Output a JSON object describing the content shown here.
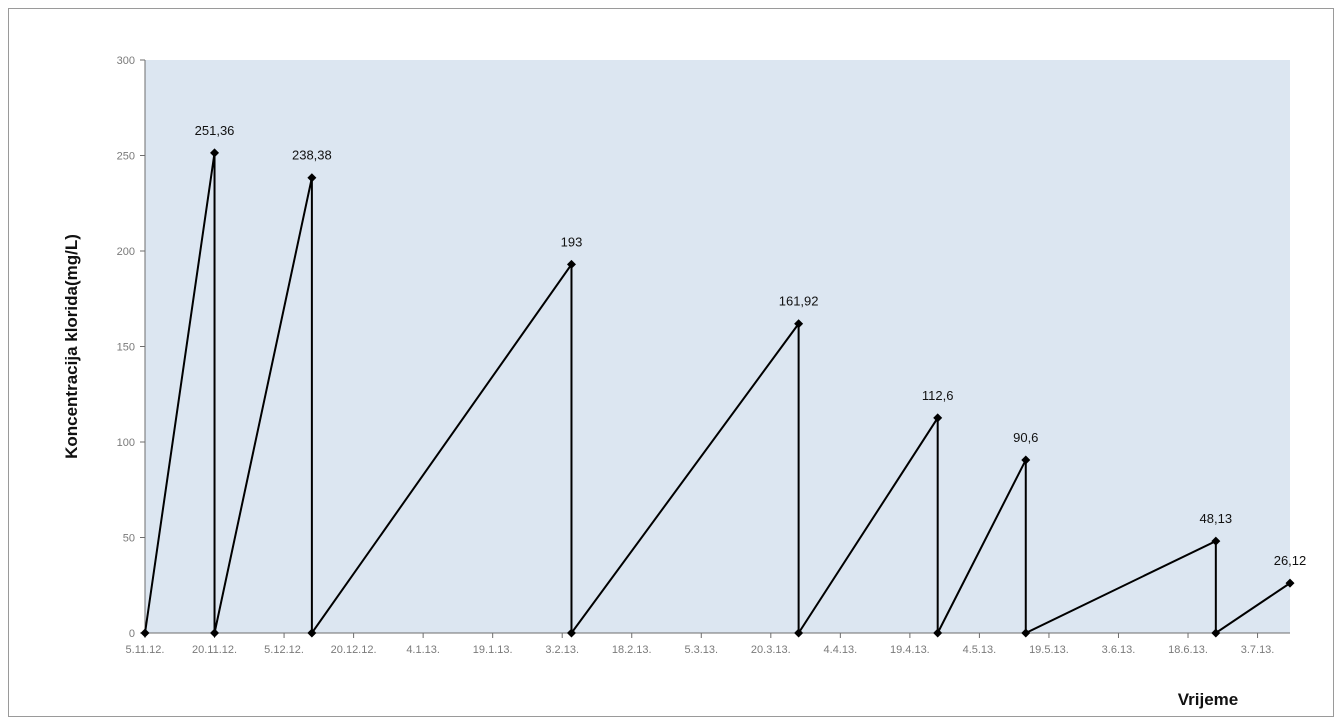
{
  "chart_data": {
    "type": "line",
    "title": "",
    "xlabel": "Vrijeme",
    "ylabel": "Koncentracija klorida(mg/L)",
    "ylim": [
      0,
      300
    ],
    "yticks": [
      "0",
      "50",
      "100",
      "150",
      "200",
      "250",
      "300"
    ],
    "xlim": [
      "2012-11-05",
      "2013-07-10"
    ],
    "xticks": [
      {
        "date": "2012-11-05",
        "label": "5.11.12."
      },
      {
        "date": "2012-11-20",
        "label": "20.11.12."
      },
      {
        "date": "2012-12-05",
        "label": "5.12.12."
      },
      {
        "date": "2012-12-20",
        "label": "20.12.12."
      },
      {
        "date": "2013-01-04",
        "label": "4.1.13."
      },
      {
        "date": "2013-01-19",
        "label": "19.1.13."
      },
      {
        "date": "2013-02-03",
        "label": "3.2.13."
      },
      {
        "date": "2013-02-18",
        "label": "18.2.13."
      },
      {
        "date": "2013-03-05",
        "label": "5.3.13."
      },
      {
        "date": "2013-03-20",
        "label": "20.3.13."
      },
      {
        "date": "2013-04-04",
        "label": "4.4.13."
      },
      {
        "date": "2013-04-19",
        "label": "19.4.13."
      },
      {
        "date": "2013-05-04",
        "label": "4.5.13."
      },
      {
        "date": "2013-05-19",
        "label": "19.5.13."
      },
      {
        "date": "2013-06-03",
        "label": "3.6.13."
      },
      {
        "date": "2013-06-18",
        "label": "18.6.13."
      },
      {
        "date": "2013-07-03",
        "label": "3.7.13."
      }
    ],
    "series": [
      {
        "points": [
          {
            "x": "2012-11-05",
            "y": 0
          },
          {
            "x": "2012-11-20",
            "y": 251.36,
            "label": "251,36"
          },
          {
            "x": "2012-11-20",
            "y": 0
          },
          {
            "x": "2012-12-11",
            "y": 238.38,
            "label": "238,38"
          },
          {
            "x": "2012-12-11",
            "y": 0
          },
          {
            "x": "2013-02-05",
            "y": 193,
            "label": "193"
          },
          {
            "x": "2013-02-05",
            "y": 0
          },
          {
            "x": "2013-03-26",
            "y": 161.92,
            "label": "161,92"
          },
          {
            "x": "2013-03-26",
            "y": 0
          },
          {
            "x": "2013-04-25",
            "y": 112.6,
            "label": "112,6"
          },
          {
            "x": "2013-04-25",
            "y": 0
          },
          {
            "x": "2013-05-14",
            "y": 90.6,
            "label": "90,6"
          },
          {
            "x": "2013-05-14",
            "y": 0
          },
          {
            "x": "2013-06-24",
            "y": 48.13,
            "label": "48,13"
          },
          {
            "x": "2013-06-24",
            "y": 0
          },
          {
            "x": "2013-07-10",
            "y": 26.12,
            "label": "26,12"
          }
        ]
      }
    ],
    "plot_background": "#dce6f1",
    "line_color": "#000000",
    "grid": false,
    "legend": "none"
  }
}
